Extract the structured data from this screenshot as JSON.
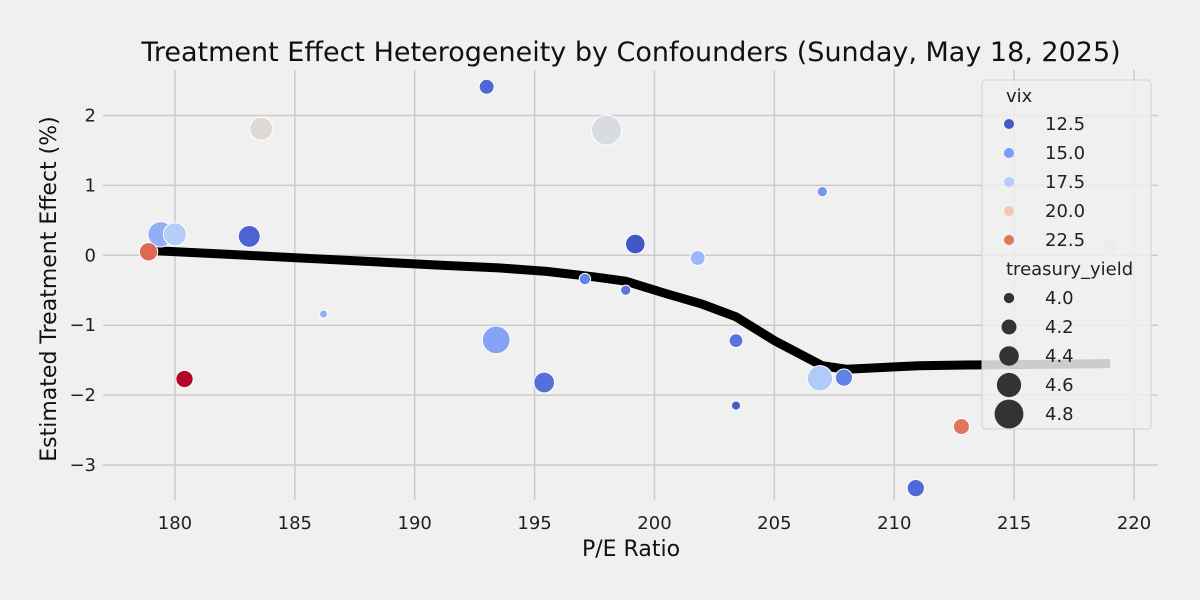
{
  "chart_data": {
    "type": "scatter",
    "title": "Treatment Effect Heterogeneity by Confounders (Sunday, May 18, 2025)",
    "xlabel": "P/E Ratio",
    "ylabel": "Estimated Treatment Effect (%)",
    "xlim": [
      177,
      221
    ],
    "ylim": [
      -3.5,
      2.65
    ],
    "xticks": [
      180,
      185,
      190,
      195,
      200,
      205,
      210,
      215,
      220
    ],
    "yticks": [
      -3,
      -2,
      -1,
      0,
      1,
      2
    ],
    "grid": true,
    "legend_placement": "top-right",
    "hue_variable": "vix",
    "size_variable": "treasury_yield",
    "points": [
      {
        "x": 193.0,
        "y": 2.41,
        "vix": 12.3,
        "treasury_yield": 4.2
      },
      {
        "x": 183.6,
        "y": 1.81,
        "vix": 19.2,
        "treasury_yield": 4.55
      },
      {
        "x": 198.0,
        "y": 1.79,
        "vix": 18.8,
        "treasury_yield": 4.85
      },
      {
        "x": 207.0,
        "y": 0.91,
        "vix": 14.5,
        "treasury_yield": 4.0
      },
      {
        "x": 179.4,
        "y": 0.3,
        "vix": 15.8,
        "treasury_yield": 4.65
      },
      {
        "x": 180.0,
        "y": 0.3,
        "vix": 17.5,
        "treasury_yield": 4.55
      },
      {
        "x": 183.1,
        "y": 0.27,
        "vix": 12.1,
        "treasury_yield": 4.5
      },
      {
        "x": 199.2,
        "y": 0.16,
        "vix": 11.5,
        "treasury_yield": 4.4
      },
      {
        "x": 219.0,
        "y": 0.13,
        "vix": 19.5,
        "treasury_yield": 4.25
      },
      {
        "x": 178.9,
        "y": 0.05,
        "vix": 22.8,
        "treasury_yield": 4.35
      },
      {
        "x": 201.8,
        "y": -0.04,
        "vix": 16.3,
        "treasury_yield": 4.2
      },
      {
        "x": 197.1,
        "y": -0.34,
        "vix": 13.6,
        "treasury_yield": 4.05
      },
      {
        "x": 198.8,
        "y": -0.5,
        "vix": 13.0,
        "treasury_yield": 4.0
      },
      {
        "x": 186.2,
        "y": -0.84,
        "vix": 15.9,
        "treasury_yield": 3.9
      },
      {
        "x": 193.4,
        "y": -1.21,
        "vix": 15.2,
        "treasury_yield": 4.75
      },
      {
        "x": 203.4,
        "y": -1.22,
        "vix": 12.9,
        "treasury_yield": 4.15
      },
      {
        "x": 180.4,
        "y": -1.77,
        "vix": 25.0,
        "treasury_yield": 4.3
      },
      {
        "x": 195.4,
        "y": -1.82,
        "vix": 12.7,
        "treasury_yield": 4.45
      },
      {
        "x": 206.9,
        "y": -1.76,
        "vix": 17.3,
        "treasury_yield": 4.65
      },
      {
        "x": 207.9,
        "y": -1.75,
        "vix": 13.5,
        "treasury_yield": 4.3
      },
      {
        "x": 203.4,
        "y": -2.15,
        "vix": 11.8,
        "treasury_yield": 3.95
      },
      {
        "x": 212.8,
        "y": -2.45,
        "vix": 22.5,
        "treasury_yield": 4.25
      },
      {
        "x": 210.9,
        "y": -3.33,
        "vix": 12.4,
        "treasury_yield": 4.3
      }
    ],
    "trend_line": {
      "x": [
        178.9,
        183.0,
        187.0,
        191.0,
        193.5,
        195.5,
        197.5,
        198.8,
        200.5,
        202.0,
        203.4,
        205.0,
        207.0,
        208.0,
        211.0,
        213.0,
        219.0
      ],
      "y": [
        0.07,
        0.0,
        -0.07,
        -0.14,
        -0.18,
        -0.23,
        -0.31,
        -0.37,
        -0.55,
        -0.7,
        -0.88,
        -1.22,
        -1.58,
        -1.63,
        -1.58,
        -1.57,
        -1.55
      ]
    },
    "legend": {
      "hue_title": "vix",
      "hue_entries": [
        {
          "label": "12.5",
          "color": "#4358cb"
        },
        {
          "label": "15.0",
          "color": "#7a9df8"
        },
        {
          "label": "17.5",
          "color": "#b4cdfb"
        },
        {
          "label": "20.0",
          "color": "#f2c6b3"
        },
        {
          "label": "22.5",
          "color": "#e67459"
        }
      ],
      "size_title": "treasury_yield",
      "size_entries": [
        {
          "label": "4.0",
          "value": 4.0
        },
        {
          "label": "4.2",
          "value": 4.2
        },
        {
          "label": "4.4",
          "value": 4.4
        },
        {
          "label": "4.6",
          "value": 4.6
        },
        {
          "label": "4.8",
          "value": 4.8
        }
      ]
    },
    "colors": {
      "background": "#f0f0f0",
      "grid": "#cbcbcb",
      "trend_line": "#000000",
      "legend_marker": "#333333"
    }
  }
}
